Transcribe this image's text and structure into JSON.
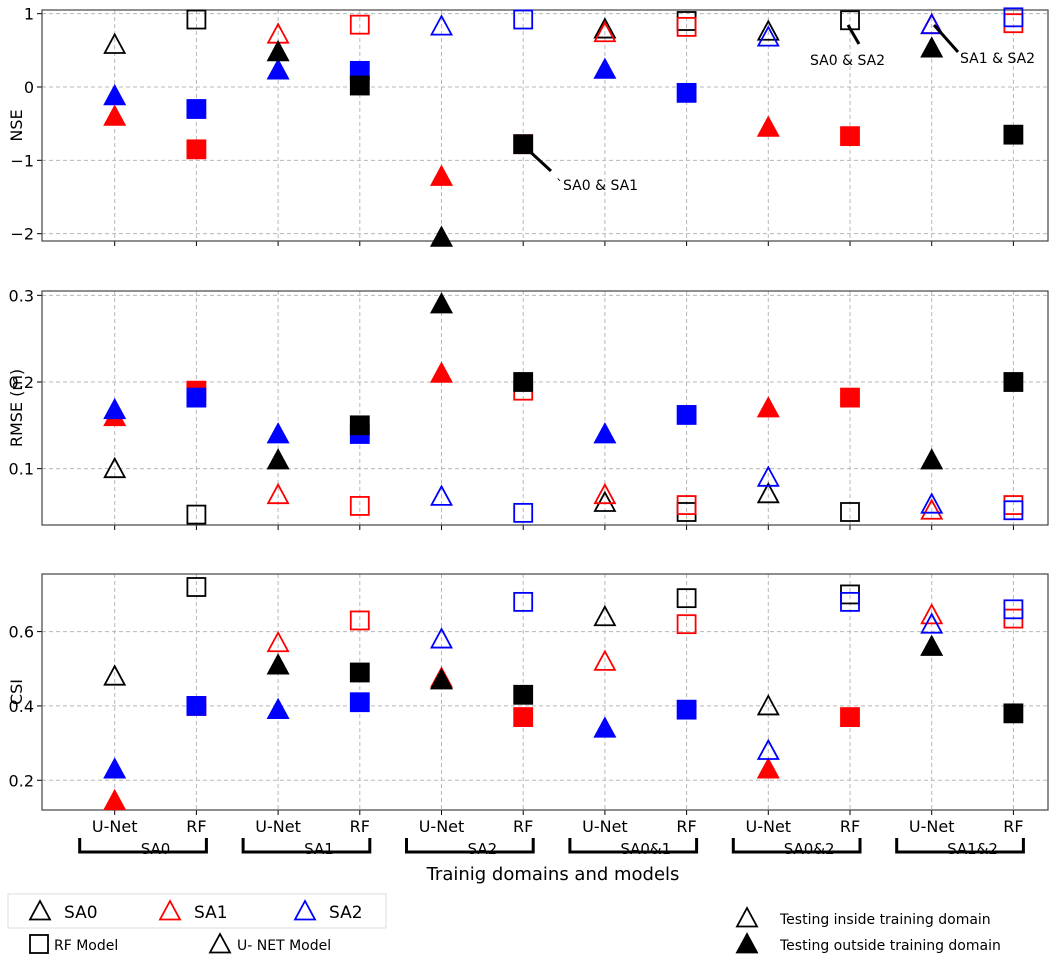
{
  "chart_data": {
    "type": "scatter",
    "categories": [
      "U-Net",
      "RF",
      "U-Net",
      "RF",
      "U-Net",
      "RF",
      "U-Net",
      "RF",
      "U-Net",
      "RF",
      "U-Net",
      "RF"
    ],
    "groups": [
      "SA0",
      "SA1",
      "SA2",
      "SA0&1",
      "SA0&2",
      "SA1&2"
    ],
    "xlabel": "Trainig domains and models",
    "colors": {
      "SA0": "#000000",
      "SA1": "#ff0000",
      "SA2": "#0000ff",
      "outside": "#000000"
    },
    "panels": [
      {
        "ylabel": "NSE",
        "ylim": [
          -2.1,
          1.05
        ],
        "yticks": [
          -2,
          -1,
          0,
          1
        ],
        "ytick_labels": [
          "−2",
          "−1",
          "0",
          "1"
        ],
        "series": [
          {
            "name": "SA0",
            "values": [
              0.58,
              0.92,
              null,
              null,
              null,
              null,
              0.79,
              0.9,
              0.76,
              0.91,
              null,
              null
            ]
          },
          {
            "name": "SA1",
            "values": [
              -0.4,
              -0.85,
              0.72,
              0.85,
              -1.22,
              -0.78,
              0.74,
              0.82,
              -0.55,
              -0.67,
              0.85,
              0.87
            ]
          },
          {
            "name": "SA2",
            "values": [
              -0.12,
              -0.3,
              0.23,
              0.22,
              0.83,
              0.92,
              0.24,
              -0.08,
              0.68,
              null,
              0.85,
              0.95
            ]
          },
          {
            "name": "outside",
            "values": [
              null,
              null,
              0.48,
              0.02,
              -2.05,
              -0.78,
              null,
              null,
              null,
              null,
              0.53,
              -0.65
            ]
          }
        ],
        "annotations": [
          "`SA0 & SA1",
          "SA0 & SA2",
          "SA1 & SA2"
        ]
      },
      {
        "ylabel": "RMSE (m)",
        "ylim": [
          0.035,
          0.305
        ],
        "yticks": [
          0.1,
          0.2,
          0.3
        ],
        "ytick_labels": [
          "0.1",
          "0.2",
          "0.3"
        ],
        "series": [
          {
            "name": "SA0",
            "values": [
              0.1,
              0.047,
              null,
              null,
              null,
              null,
              0.061,
              0.05,
              0.071,
              0.05,
              null,
              null
            ]
          },
          {
            "name": "SA1",
            "values": [
              0.16,
              0.19,
              0.07,
              0.057,
              0.21,
              0.19,
              0.07,
              0.058,
              0.17,
              0.182,
              0.052,
              0.058
            ]
          },
          {
            "name": "SA2",
            "values": [
              0.168,
              0.182,
              0.14,
              0.14,
              0.068,
              0.049,
              0.14,
              0.162,
              0.09,
              null,
              0.059,
              0.052
            ]
          },
          {
            "name": "outside",
            "values": [
              null,
              null,
              0.11,
              0.15,
              0.29,
              0.2,
              null,
              null,
              null,
              null,
              0.11,
              0.2
            ]
          }
        ],
        "annotations": []
      },
      {
        "ylabel": "CSI",
        "ylim": [
          0.12,
          0.755
        ],
        "yticks": [
          0.2,
          0.4,
          0.6
        ],
        "ytick_labels": [
          "0.2",
          "0.4",
          "0.6"
        ],
        "series": [
          {
            "name": "SA0",
            "values": [
              0.48,
              0.72,
              null,
              null,
              null,
              null,
              0.64,
              0.69,
              0.4,
              0.7,
              null,
              null
            ]
          },
          {
            "name": "SA1",
            "values": [
              0.145,
              0.4,
              0.57,
              0.63,
              0.475,
              0.37,
              0.52,
              0.62,
              0.23,
              0.37,
              0.645,
              0.635
            ]
          },
          {
            "name": "SA2",
            "values": [
              0.23,
              0.4,
              0.39,
              0.41,
              0.58,
              0.68,
              0.34,
              0.39,
              0.28,
              0.68,
              0.62,
              0.66
            ]
          },
          {
            "name": "outside",
            "values": [
              null,
              null,
              0.51,
              0.49,
              0.47,
              0.43,
              null,
              null,
              null,
              null,
              0.56,
              0.38
            ]
          }
        ],
        "annotations": []
      }
    ],
    "legend": {
      "series": [
        "SA0",
        "SA1",
        "SA2"
      ],
      "markers": [
        "RF Model",
        "U- NET Model"
      ],
      "testing": [
        "Testing inside training domain",
        "Testing outside training domain"
      ]
    }
  }
}
